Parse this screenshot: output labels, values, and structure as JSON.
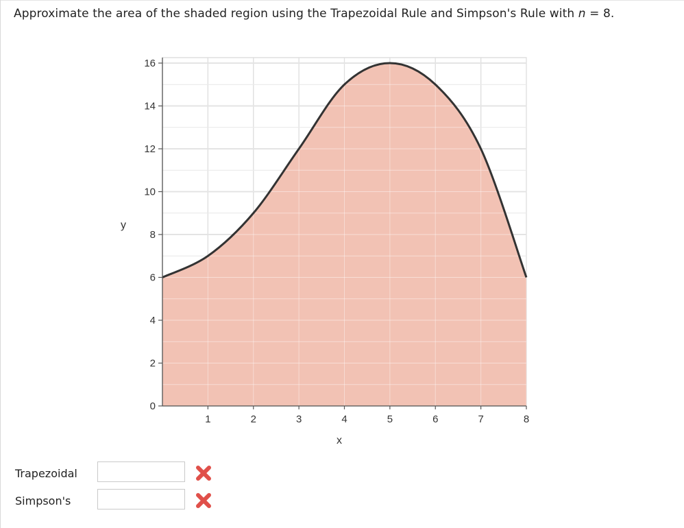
{
  "question": {
    "text_before": "Approximate the area of the shaded region using the Trapezoidal Rule and Simpson's Rule with ",
    "variable": "n",
    "text_after": " = 8."
  },
  "chart_data": {
    "type": "area",
    "x": [
      0,
      1,
      2,
      3,
      4,
      5,
      6,
      7,
      8
    ],
    "y": [
      6,
      7,
      9,
      12,
      15,
      16,
      15,
      12,
      6
    ],
    "xlabel": "x",
    "ylabel": "y",
    "xlim": [
      0,
      8
    ],
    "ylim": [
      0,
      16
    ],
    "x_ticks": [
      "1",
      "2",
      "3",
      "4",
      "5",
      "6",
      "7",
      "8"
    ],
    "y_ticks": [
      "0",
      "2",
      "4",
      "6",
      "8",
      "10",
      "12",
      "14",
      "16"
    ],
    "grid": true,
    "fill_color": "#f2c2b4",
    "line_color": "#333333"
  },
  "answers": [
    {
      "label": "Trapezoidal",
      "value": "",
      "status": "incorrect"
    },
    {
      "label": "Simpson's",
      "value": "",
      "status": "incorrect"
    }
  ],
  "colors": {
    "incorrect_mark": "#e0504a",
    "grid": "#cccccc"
  },
  "icons": {
    "incorrect": "x-mark-icon"
  }
}
